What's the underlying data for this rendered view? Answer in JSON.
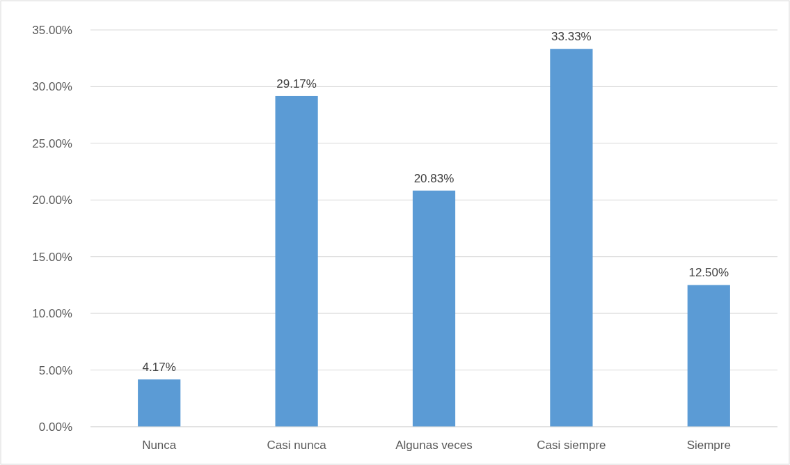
{
  "chart_data": {
    "type": "bar",
    "categories": [
      "Nunca",
      "Casi nunca",
      "Algunas veces",
      "Casi siempre",
      "Siempre"
    ],
    "values": [
      4.17,
      29.17,
      20.83,
      33.33,
      12.5
    ],
    "value_labels": [
      "4.17%",
      "29.17%",
      "20.83%",
      "33.33%",
      "12.50%"
    ],
    "color": "#5b9bd5",
    "ylim": [
      0,
      35
    ],
    "yticks": [
      {
        "value": 0,
        "label": "0.00%"
      },
      {
        "value": 5,
        "label": "5.00%"
      },
      {
        "value": 10,
        "label": "10.00%"
      },
      {
        "value": 15,
        "label": "15.00%"
      },
      {
        "value": 20,
        "label": "20.00%"
      },
      {
        "value": 25,
        "label": "25.00%"
      },
      {
        "value": 30,
        "label": "30.00%"
      },
      {
        "value": 35,
        "label": "35.00%"
      }
    ],
    "grid": "y"
  }
}
